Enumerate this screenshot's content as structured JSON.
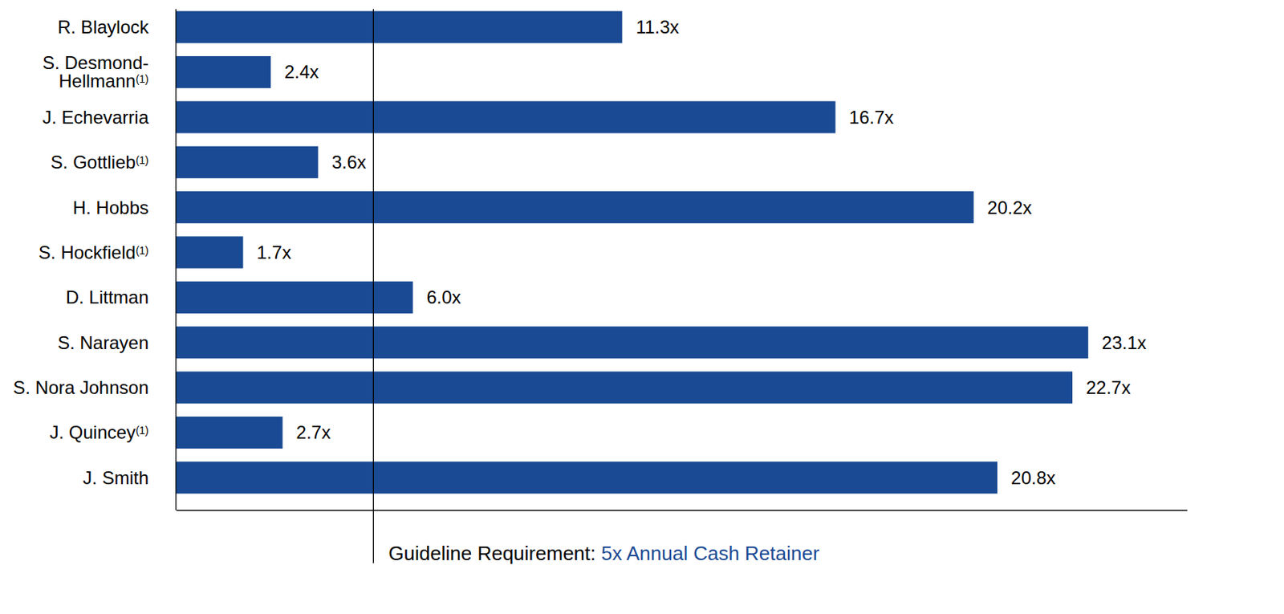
{
  "chart_data": {
    "type": "bar",
    "orientation": "horizontal",
    "categories": [
      "R. Blaylock",
      "S. Desmond-Hellmann(1)",
      "J. Echevarria",
      "S. Gottlieb(1)",
      "H. Hobbs",
      "S. Hockfield(1)",
      "D. Littman",
      "S. Narayen",
      "S. Nora Johnson",
      "J. Quincey(1)",
      "J. Smith"
    ],
    "values": [
      11.3,
      2.4,
      16.7,
      3.6,
      20.2,
      1.7,
      6.0,
      23.1,
      22.7,
      2.7,
      20.8
    ],
    "value_labels": [
      "11.3x",
      "2.4x",
      "16.7x",
      "3.6x",
      "20.2x",
      "1.7x",
      "6.0x",
      "23.1x",
      "22.7x",
      "2.7x",
      "20.8x"
    ],
    "color": "#1a4a93",
    "xlim": [
      0,
      25.6
    ],
    "data_labels": true,
    "tick_labels": false,
    "grid": false,
    "annotations": [
      {
        "value": 5,
        "text": "Guideline Requirement: ",
        "highlight": "5x Annual Cash Retainer",
        "highlight_color": "#1a4a93"
      }
    ]
  }
}
